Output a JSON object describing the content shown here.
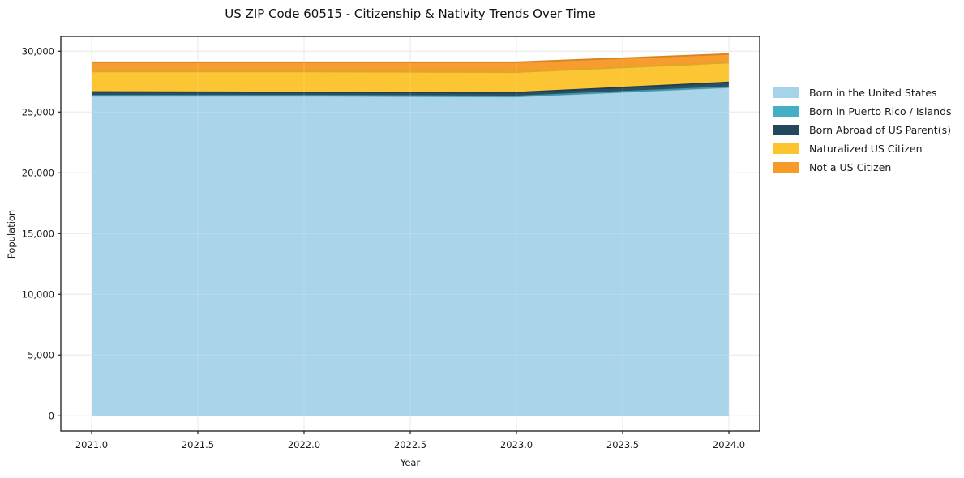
{
  "chart_data": {
    "type": "area",
    "stacked": true,
    "title": "US ZIP Code 60515 - Citizenship & Nativity Trends Over Time",
    "xlabel": "Year",
    "ylabel": "Population",
    "x": [
      2021,
      2022,
      2023,
      2024
    ],
    "series": [
      {
        "name": "Born in the United States",
        "color": "#a6d3e8",
        "values": [
          26320,
          26320,
          26260,
          27020
        ]
      },
      {
        "name": "Born in Puerto Rico / Islands",
        "color": "#45b0c5",
        "values": [
          30,
          30,
          30,
          30
        ]
      },
      {
        "name": "Born Abroad of US Parent(s)",
        "color": "#23485e",
        "values": [
          300,
          270,
          310,
          390
        ]
      },
      {
        "name": "Naturalized US Citizen",
        "color": "#fcc32d",
        "values": [
          1680,
          1710,
          1680,
          1610
        ]
      },
      {
        "name": "Not a US Citizen",
        "color": "#f79a28",
        "values": [
          770,
          770,
          820,
          720
        ]
      }
    ],
    "xticks": [
      "2021.0",
      "2021.5",
      "2022.0",
      "2022.5",
      "2023.0",
      "2023.5",
      "2024.0"
    ],
    "xtick_values": [
      2021,
      2021.5,
      2022,
      2022.5,
      2023,
      2023.5,
      2024
    ],
    "yticks": [
      "0",
      "5,000",
      "10,000",
      "15,000",
      "20,000",
      "25,000",
      "30,000"
    ],
    "ytick_values": [
      0,
      5000,
      10000,
      15000,
      20000,
      25000,
      30000
    ],
    "xlim": [
      2020.855,
      2024.145
    ],
    "ylim": [
      -1250,
      31220
    ],
    "grid": true,
    "legend_position": "right",
    "background_color": "#ffffff",
    "spine_color": "#1a1a1a",
    "grid_color": "#e4e4e4",
    "tick_label_color": "#1a1a1a"
  }
}
